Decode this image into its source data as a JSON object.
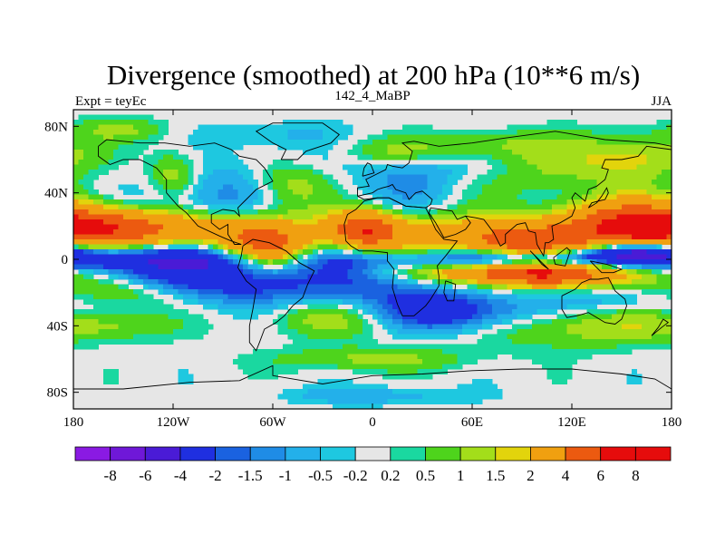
{
  "chart_data": {
    "type": "heatmap",
    "title": "Divergence (smoothed) at 200 hPa (10**6 m/s)",
    "subtitle_left": "Expt = teyEc",
    "subtitle_center": "142_4_MaBP",
    "subtitle_right": "JJA",
    "x_ticks": [
      {
        "value": -180,
        "label": "180"
      },
      {
        "value": -120,
        "label": "120W"
      },
      {
        "value": -60,
        "label": "60W"
      },
      {
        "value": 0,
        "label": "0"
      },
      {
        "value": 60,
        "label": "60E"
      },
      {
        "value": 120,
        "label": "120E"
      },
      {
        "value": 180,
        "label": "180"
      }
    ],
    "y_ticks": [
      {
        "value": 80,
        "label": "80N"
      },
      {
        "value": 40,
        "label": "40N"
      },
      {
        "value": 0,
        "label": "0"
      },
      {
        "value": -40,
        "label": "40S"
      },
      {
        "value": -80,
        "label": "80S"
      }
    ],
    "xlim": [
      -180,
      180
    ],
    "ylim": [
      -90,
      90
    ],
    "colorbar": {
      "levels": [
        "-8",
        "-6",
        "-4",
        "-2",
        "-1.5",
        "-1",
        "-0.5",
        "-0.2",
        "0.2",
        "0.5",
        "1",
        "1.5",
        "2",
        "4",
        "6",
        "8"
      ],
      "colors": [
        "#8a1ae3",
        "#6f18d8",
        "#4a1bd6",
        "#1f2fe0",
        "#1a62e0",
        "#1f8ce6",
        "#23b0ea",
        "#1ec8e0",
        "#e6e6e6",
        "#1ad8a0",
        "#4ed41c",
        "#a3de1a",
        "#e2d40c",
        "#f0a010",
        "#ec5a10",
        "#e60c0c",
        "#e60c0c"
      ]
    },
    "field": {
      "units": "10**6 m/s",
      "lon_range": [
        -180,
        180
      ],
      "lat_range": [
        -90,
        90
      ],
      "features": [
        {
          "lon": -130,
          "lat": 18,
          "w": 55,
          "h": 9,
          "value": 3.0
        },
        {
          "lon": -160,
          "lat": 20,
          "w": 30,
          "h": 8,
          "value": 2.5
        },
        {
          "lon": -65,
          "lat": 10,
          "w": 18,
          "h": 9,
          "value": 3.5
        },
        {
          "lon": -5,
          "lat": 18,
          "w": 14,
          "h": 8,
          "value": 4.5
        },
        {
          "lon": 40,
          "lat": 15,
          "w": 45,
          "h": 9,
          "value": 2.5
        },
        {
          "lon": 90,
          "lat": 10,
          "w": 22,
          "h": 7,
          "value": 4.0
        },
        {
          "lon": 160,
          "lat": 20,
          "w": 28,
          "h": 12,
          "value": 3.5
        },
        {
          "lon": 140,
          "lat": 18,
          "w": 30,
          "h": 10,
          "value": 2.5
        },
        {
          "lon": 100,
          "lat": -8,
          "w": 30,
          "h": 6,
          "value": 4.5
        },
        {
          "lon": 60,
          "lat": -8,
          "w": 40,
          "h": 5,
          "value": 2.5
        },
        {
          "lon": 150,
          "lat": -8,
          "w": 35,
          "h": 6,
          "value": 2.0
        },
        {
          "lon": -150,
          "lat": -20,
          "w": 30,
          "h": 7,
          "value": 2.0
        },
        {
          "lon": -20,
          "lat": -35,
          "w": 30,
          "h": 8,
          "value": 1.5
        },
        {
          "lon": 120,
          "lat": -40,
          "w": 40,
          "h": 9,
          "value": 1.5
        },
        {
          "lon": -160,
          "lat": -40,
          "w": 25,
          "h": 6,
          "value": 1.2
        },
        {
          "lon": 100,
          "lat": 55,
          "w": 35,
          "h": 10,
          "value": 1.2
        },
        {
          "lon": 160,
          "lat": 62,
          "w": 25,
          "h": 10,
          "value": 1.5
        },
        {
          "lon": -50,
          "lat": 45,
          "w": 18,
          "h": 12,
          "value": 2.0
        },
        {
          "lon": -120,
          "lat": 50,
          "w": 10,
          "h": 10,
          "value": 1.5
        },
        {
          "lon": 10,
          "lat": 65,
          "w": 25,
          "h": 6,
          "value": 1.2
        },
        {
          "lon": -150,
          "lat": 78,
          "w": 20,
          "h": 5,
          "value": 1.0
        },
        {
          "lon": -60,
          "lat": 0,
          "w": 20,
          "h": 7,
          "value": 2.2
        },
        {
          "lon": 0,
          "lat": -60,
          "w": 40,
          "h": 5,
          "value": 1.2
        },
        {
          "lon": -140,
          "lat": 0,
          "w": 80,
          "h": 6,
          "value": -3.0
        },
        {
          "lon": 100,
          "lat": 0,
          "w": 60,
          "h": 4,
          "value": -3.5
        },
        {
          "lon": -95,
          "lat": -12,
          "w": 50,
          "h": 10,
          "value": -3.0
        },
        {
          "lon": 45,
          "lat": -32,
          "w": 35,
          "h": 8,
          "value": -3.0
        },
        {
          "lon": 5,
          "lat": -15,
          "w": 35,
          "h": 10,
          "value": -1.5
        },
        {
          "lon": 160,
          "lat": 5,
          "w": 20,
          "h": 4,
          "value": -4.0
        },
        {
          "lon": -80,
          "lat": 40,
          "w": 35,
          "h": 12,
          "value": -1.2
        },
        {
          "lon": 20,
          "lat": 45,
          "w": 20,
          "h": 12,
          "value": -1.0
        },
        {
          "lon": -120,
          "lat": 30,
          "w": 30,
          "h": 8,
          "value": -0.8
        },
        {
          "lon": -40,
          "lat": 60,
          "w": 25,
          "h": 8,
          "value": -0.7
        },
        {
          "lon": 60,
          "lat": 55,
          "w": 30,
          "h": 6,
          "value": -0.7
        },
        {
          "lon": 0,
          "lat": -82,
          "w": 40,
          "h": 4,
          "value": -0.8
        },
        {
          "lon": 150,
          "lat": -25,
          "w": 35,
          "h": 6,
          "value": -1.0
        },
        {
          "lon": -60,
          "lat": 75,
          "w": 30,
          "h": 6,
          "value": -0.6
        },
        {
          "lon": 80,
          "lat": 70,
          "w": 30,
          "h": 6,
          "value": 0.8
        }
      ]
    },
    "coastline_lonlat": [
      [
        [
          -165,
          68
        ],
        [
          -160,
          72
        ],
        [
          -140,
          70
        ],
        [
          -125,
          70
        ],
        [
          -110,
          68
        ],
        [
          -95,
          70
        ],
        [
          -85,
          66
        ],
        [
          -80,
          62
        ],
        [
          -70,
          60
        ],
        [
          -65,
          55
        ],
        [
          -60,
          47
        ],
        [
          -66,
          44
        ],
        [
          -70,
          42
        ],
        [
          -76,
          36
        ],
        [
          -81,
          31
        ],
        [
          -80,
          26
        ],
        [
          -83,
          29
        ],
        [
          -90,
          30
        ],
        [
          -97,
          27
        ],
        [
          -97,
          22
        ],
        [
          -92,
          18
        ],
        [
          -87,
          21
        ],
        [
          -87,
          15
        ],
        [
          -83,
          9
        ],
        [
          -79,
          9
        ],
        [
          -85,
          11
        ],
        [
          -92,
          14
        ],
        [
          -105,
          20
        ],
        [
          -112,
          28
        ],
        [
          -117,
          32
        ],
        [
          -124,
          40
        ],
        [
          -124,
          48
        ],
        [
          -130,
          55
        ],
        [
          -140,
          60
        ],
        [
          -150,
          60
        ],
        [
          -158,
          57
        ],
        [
          -165,
          62
        ],
        [
          -165,
          68
        ]
      ],
      [
        [
          -78,
          8
        ],
        [
          -72,
          12
        ],
        [
          -62,
          10
        ],
        [
          -52,
          5
        ],
        [
          -44,
          -2
        ],
        [
          -35,
          -7
        ],
        [
          -39,
          -15
        ],
        [
          -42,
          -23
        ],
        [
          -48,
          -28
        ],
        [
          -53,
          -34
        ],
        [
          -58,
          -38
        ],
        [
          -65,
          -42
        ],
        [
          -68,
          -50
        ],
        [
          -70,
          -55
        ],
        [
          -74,
          -50
        ],
        [
          -74,
          -40
        ],
        [
          -72,
          -30
        ],
        [
          -70,
          -18
        ],
        [
          -76,
          -13
        ],
        [
          -81,
          -5
        ],
        [
          -79,
          2
        ],
        [
          -78,
          8
        ]
      ],
      [
        [
          -9,
          38
        ],
        [
          -9,
          43
        ],
        [
          -2,
          44
        ],
        [
          -4,
          48
        ],
        [
          2,
          51
        ],
        [
          8,
          54
        ],
        [
          9,
          57
        ],
        [
          12,
          56
        ],
        [
          18,
          55
        ],
        [
          22,
          58
        ],
        [
          24,
          65
        ],
        [
          18,
          70
        ],
        [
          25,
          71
        ],
        [
          40,
          68
        ],
        [
          60,
          70
        ],
        [
          80,
          73
        ],
        [
          110,
          77
        ],
        [
          140,
          72
        ],
        [
          170,
          70
        ],
        [
          180,
          68
        ]
      ],
      [
        [
          -9,
          38
        ],
        [
          -5,
          36
        ],
        [
          3,
          37
        ],
        [
          10,
          37
        ],
        [
          20,
          32
        ],
        [
          32,
          31
        ],
        [
          35,
          33
        ],
        [
          36,
          36
        ],
        [
          30,
          41
        ],
        [
          26,
          40
        ],
        [
          24,
          38
        ],
        [
          22,
          36
        ],
        [
          20,
          40
        ],
        [
          14,
          42
        ],
        [
          12,
          45
        ],
        [
          10,
          44
        ],
        [
          6,
          43
        ],
        [
          3,
          42
        ],
        [
          0,
          40
        ],
        [
          -9,
          38
        ]
      ],
      [
        [
          -17,
          21
        ],
        [
          -16,
          11
        ],
        [
          -13,
          8
        ],
        [
          -8,
          5
        ],
        [
          0,
          5
        ],
        [
          9,
          4
        ],
        [
          9,
          -1
        ],
        [
          13,
          -6
        ],
        [
          12,
          -17
        ],
        [
          15,
          -27
        ],
        [
          18,
          -34
        ],
        [
          25,
          -34
        ],
        [
          32,
          -28
        ],
        [
          35,
          -24
        ],
        [
          40,
          -16
        ],
        [
          40,
          -10
        ],
        [
          39,
          -4
        ],
        [
          44,
          2
        ],
        [
          51,
          11
        ],
        [
          43,
          12
        ],
        [
          38,
          18
        ],
        [
          34,
          27
        ],
        [
          32,
          31
        ],
        [
          20,
          32
        ],
        [
          10,
          37
        ],
        [
          3,
          37
        ],
        [
          -5,
          35
        ],
        [
          -10,
          30
        ],
        [
          -15,
          27
        ],
        [
          -17,
          21
        ]
      ],
      [
        [
          34,
          28
        ],
        [
          38,
          22
        ],
        [
          43,
          13
        ],
        [
          50,
          15
        ],
        [
          56,
          18
        ],
        [
          59,
          22
        ],
        [
          56,
          26
        ],
        [
          51,
          24
        ],
        [
          48,
          29
        ],
        [
          35,
          31
        ],
        [
          34,
          28
        ]
      ],
      [
        [
          56,
          26
        ],
        [
          62,
          25
        ],
        [
          67,
          24
        ],
        [
          70,
          20
        ],
        [
          73,
          16
        ],
        [
          77,
          8
        ],
        [
          80,
          10
        ],
        [
          80,
          15
        ],
        [
          87,
          21
        ],
        [
          92,
          22
        ],
        [
          94,
          17
        ],
        [
          98,
          16
        ],
        [
          99,
          9
        ],
        [
          103,
          2
        ],
        [
          104,
          10
        ],
        [
          106,
          10
        ],
        [
          109,
          12
        ],
        [
          108,
          20
        ],
        [
          113,
          22
        ],
        [
          120,
          26
        ],
        [
          122,
          31
        ],
        [
          120,
          37
        ],
        [
          122,
          40
        ],
        [
          128,
          35
        ],
        [
          130,
          42
        ],
        [
          135,
          44
        ],
        [
          140,
          48
        ],
        [
          142,
          54
        ],
        [
          138,
          55
        ],
        [
          140,
          60
        ],
        [
          150,
          60
        ],
        [
          160,
          62
        ],
        [
          165,
          68
        ],
        [
          180,
          66
        ]
      ],
      [
        [
          114,
          -22
        ],
        [
          114,
          -30
        ],
        [
          117,
          -35
        ],
        [
          123,
          -34
        ],
        [
          130,
          -32
        ],
        [
          135,
          -35
        ],
        [
          140,
          -38
        ],
        [
          146,
          -39
        ],
        [
          150,
          -36
        ],
        [
          153,
          -28
        ],
        [
          152,
          -24
        ],
        [
          146,
          -19
        ],
        [
          142,
          -11
        ],
        [
          136,
          -12
        ],
        [
          131,
          -12
        ],
        [
          126,
          -14
        ],
        [
          122,
          -18
        ],
        [
          114,
          -22
        ]
      ],
      [
        [
          -180,
          -78
        ],
        [
          -150,
          -78
        ],
        [
          -110,
          -74
        ],
        [
          -80,
          -73
        ],
        [
          -60,
          -64
        ],
        [
          -60,
          -70
        ],
        [
          -30,
          -75
        ],
        [
          0,
          -70
        ],
        [
          30,
          -69
        ],
        [
          60,
          -67
        ],
        [
          90,
          -66
        ],
        [
          120,
          -66
        ],
        [
          150,
          -69
        ],
        [
          170,
          -72
        ],
        [
          180,
          -78
        ]
      ],
      [
        [
          -55,
          60
        ],
        [
          -45,
          60
        ],
        [
          -40,
          65
        ],
        [
          -25,
          70
        ],
        [
          -20,
          75
        ],
        [
          -30,
          82
        ],
        [
          -60,
          82
        ],
        [
          -70,
          77
        ],
        [
          -60,
          70
        ],
        [
          -52,
          66
        ],
        [
          -55,
          60
        ]
      ],
      [
        [
          44,
          -13
        ],
        [
          50,
          -15
        ],
        [
          49,
          -25
        ],
        [
          45,
          -25
        ],
        [
          43,
          -20
        ],
        [
          44,
          -13
        ]
      ],
      [
        [
          95,
          5
        ],
        [
          105,
          -5
        ],
        [
          106,
          -6
        ],
        [
          102,
          -3
        ],
        [
          97,
          3
        ],
        [
          95,
          5
        ]
      ],
      [
        [
          109,
          1
        ],
        [
          117,
          7
        ],
        [
          119,
          5
        ],
        [
          116,
          -4
        ],
        [
          110,
          -3
        ],
        [
          109,
          1
        ]
      ],
      [
        [
          131,
          -1
        ],
        [
          141,
          -3
        ],
        [
          150,
          -6
        ],
        [
          145,
          -8
        ],
        [
          138,
          -8
        ],
        [
          131,
          -1
        ]
      ],
      [
        [
          130,
          31
        ],
        [
          132,
          34
        ],
        [
          136,
          35
        ],
        [
          140,
          36
        ],
        [
          142,
          40
        ],
        [
          141,
          43
        ],
        [
          138,
          38
        ],
        [
          135,
          34
        ],
        [
          130,
          31
        ]
      ],
      [
        [
          -6,
          50
        ],
        [
          -5,
          55
        ],
        [
          -3,
          58
        ],
        [
          -1,
          57
        ],
        [
          1,
          52
        ],
        [
          -6,
          50
        ]
      ],
      [
        [
          168,
          -46
        ],
        [
          174,
          -41
        ],
        [
          178,
          -38
        ],
        [
          175,
          -36
        ],
        [
          172,
          -41
        ],
        [
          168,
          -46
        ]
      ]
    ]
  }
}
